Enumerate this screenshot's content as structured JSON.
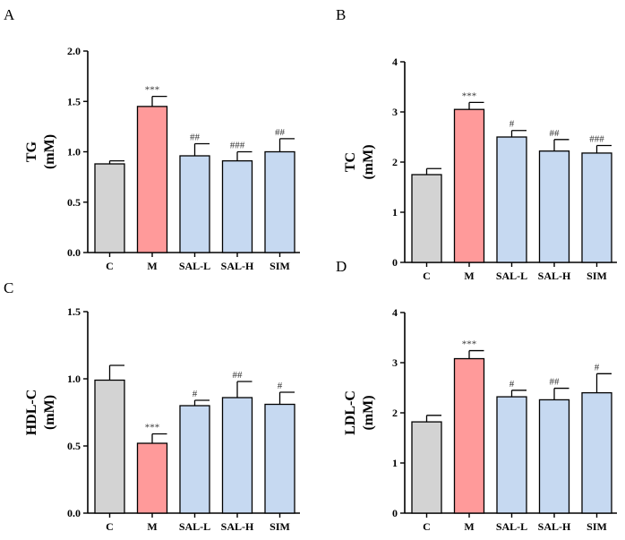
{
  "colors": {
    "C": "#d3d3d3",
    "M": "#ff9a9a",
    "treatment": "#c6d9f1"
  },
  "chart_data": [
    {
      "type": "bar",
      "panel": "A",
      "ylabel_line1": "TG",
      "ylabel_line2": "(mM)",
      "categories": [
        "C",
        "M",
        "SAL-L",
        "SAL-H",
        "SIM"
      ],
      "values": [
        0.88,
        1.45,
        0.96,
        0.91,
        1.0
      ],
      "errors": [
        0.03,
        0.1,
        0.12,
        0.09,
        0.13
      ],
      "significance": [
        "",
        "***",
        "##",
        "###",
        "##"
      ],
      "ylim": [
        0,
        2.0
      ],
      "yticks": [
        0.0,
        0.5,
        1.0,
        1.5,
        2.0
      ],
      "ytick_labels": [
        "0.0",
        "0.5",
        "1.0",
        "1.5",
        "2.0"
      ]
    },
    {
      "type": "bar",
      "panel": "B",
      "ylabel_line1": "TC",
      "ylabel_line2": "(mM)",
      "categories": [
        "C",
        "M",
        "SAL-L",
        "SAL-H",
        "SIM"
      ],
      "values": [
        1.75,
        3.05,
        2.5,
        2.22,
        2.18
      ],
      "errors": [
        0.12,
        0.14,
        0.13,
        0.23,
        0.15
      ],
      "significance": [
        "",
        "***",
        "#",
        "##",
        "###"
      ],
      "ylim": [
        0,
        4
      ],
      "yticks": [
        0,
        1,
        2,
        3,
        4
      ],
      "ytick_labels": [
        "0",
        "1",
        "2",
        "3",
        "4"
      ]
    },
    {
      "type": "bar",
      "panel": "C",
      "ylabel_line1": "HDL-C",
      "ylabel_line2": "(mM)",
      "categories": [
        "C",
        "M",
        "SAL-L",
        "SAL-H",
        "SIM"
      ],
      "values": [
        0.99,
        0.52,
        0.8,
        0.86,
        0.81
      ],
      "errors": [
        0.11,
        0.07,
        0.04,
        0.12,
        0.09
      ],
      "significance": [
        "",
        "***",
        "#",
        "##",
        "#"
      ],
      "ylim": [
        0,
        1.5
      ],
      "yticks": [
        0.0,
        0.5,
        1.0,
        1.5
      ],
      "ytick_labels": [
        "0.0",
        "0.5",
        "1.0",
        "1.5"
      ]
    },
    {
      "type": "bar",
      "panel": "D",
      "ylabel_line1": "LDL-C",
      "ylabel_line2": "(mM)",
      "categories": [
        "C",
        "M",
        "SAL-L",
        "SAL-H",
        "SIM"
      ],
      "values": [
        1.82,
        3.08,
        2.32,
        2.26,
        2.4
      ],
      "errors": [
        0.13,
        0.16,
        0.13,
        0.23,
        0.38
      ],
      "significance": [
        "",
        "***",
        "#",
        "##",
        "#"
      ],
      "ylim": [
        0,
        4
      ],
      "yticks": [
        0,
        1,
        2,
        3,
        4
      ],
      "ytick_labels": [
        "0",
        "1",
        "2",
        "3",
        "4"
      ]
    }
  ]
}
